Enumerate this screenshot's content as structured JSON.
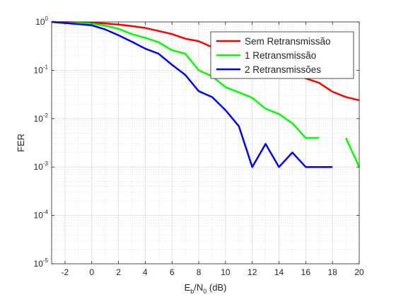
{
  "chart_data": {
    "type": "line",
    "title": "",
    "xlabel": {
      "base": "E",
      "sub1": "b",
      "mid": "/N",
      "sub2": "0",
      "tail": " (dB)"
    },
    "ylabel": "FER",
    "xlim": [
      -3,
      20
    ],
    "ylim": [
      1e-05,
      1
    ],
    "yscale": "log",
    "x_ticks": [
      -2,
      0,
      2,
      4,
      6,
      8,
      10,
      12,
      14,
      16,
      18,
      20
    ],
    "y_ticks": [
      {
        "exp": -5,
        "base": "10",
        "sup": "-5"
      },
      {
        "exp": -4,
        "base": "10",
        "sup": "-4"
      },
      {
        "exp": -3,
        "base": "10",
        "sup": "-3"
      },
      {
        "exp": -2,
        "base": "10",
        "sup": "-2"
      },
      {
        "exp": -1,
        "base": "10",
        "sup": "-1"
      },
      {
        "exp": 0,
        "base": "10",
        "sup": "0"
      }
    ],
    "grid": true,
    "minor_grid": true,
    "legend_position": "top-right",
    "series": [
      {
        "name": "Sem Retransmissão",
        "color": "#ff0000",
        "points": [
          [
            -3,
            1.0
          ],
          [
            0,
            0.96
          ],
          [
            1,
            0.93
          ],
          [
            2,
            0.88
          ],
          [
            3,
            0.82
          ],
          [
            4,
            0.75
          ],
          [
            5,
            0.65
          ],
          [
            6,
            0.56
          ],
          [
            7,
            0.45
          ],
          [
            8,
            0.4
          ],
          [
            9,
            0.3
          ],
          [
            10,
            0.26
          ],
          [
            11,
            0.22
          ],
          [
            12,
            0.18
          ],
          [
            13,
            0.14
          ],
          [
            14,
            0.1
          ],
          [
            15,
            0.085
          ],
          [
            16,
            0.068
          ],
          [
            17,
            0.055
          ],
          [
            18,
            0.036
          ],
          [
            19,
            0.028
          ],
          [
            20,
            0.024
          ]
        ]
      },
      {
        "name": "1 Retransmissão",
        "color": "#00ff00",
        "points": [
          [
            -3,
            1.0
          ],
          [
            0,
            0.92
          ],
          [
            1,
            0.84
          ],
          [
            2,
            0.72
          ],
          [
            3,
            0.56
          ],
          [
            4,
            0.47
          ],
          [
            5,
            0.38
          ],
          [
            6,
            0.26
          ],
          [
            7,
            0.22
          ],
          [
            8,
            0.1
          ],
          [
            9,
            0.075
          ],
          [
            10,
            0.045
          ],
          [
            11,
            0.035
          ],
          [
            12,
            0.027
          ],
          [
            13,
            0.016
          ],
          [
            14,
            0.0125
          ],
          [
            15,
            0.008
          ],
          [
            16,
            0.004
          ],
          [
            17,
            0.004
          ],
          [
            18,
            null
          ],
          [
            19,
            0.004
          ],
          [
            20,
            0.001
          ]
        ]
      },
      {
        "name": "2 Retransmissões",
        "color": "#0000ff",
        "points": [
          [
            -3,
            1.0
          ],
          [
            0,
            0.85
          ],
          [
            1,
            0.7
          ],
          [
            2,
            0.53
          ],
          [
            3,
            0.39
          ],
          [
            4,
            0.28
          ],
          [
            5,
            0.22
          ],
          [
            6,
            0.13
          ],
          [
            7,
            0.08
          ],
          [
            8,
            0.037
          ],
          [
            9,
            0.028
          ],
          [
            10,
            0.015
          ],
          [
            11,
            0.007
          ],
          [
            12,
            0.001
          ],
          [
            13,
            0.003
          ],
          [
            14,
            0.001
          ],
          [
            15,
            0.002
          ],
          [
            16,
            0.001
          ],
          [
            17,
            0.001
          ],
          [
            18,
            0.001
          ]
        ]
      }
    ]
  }
}
